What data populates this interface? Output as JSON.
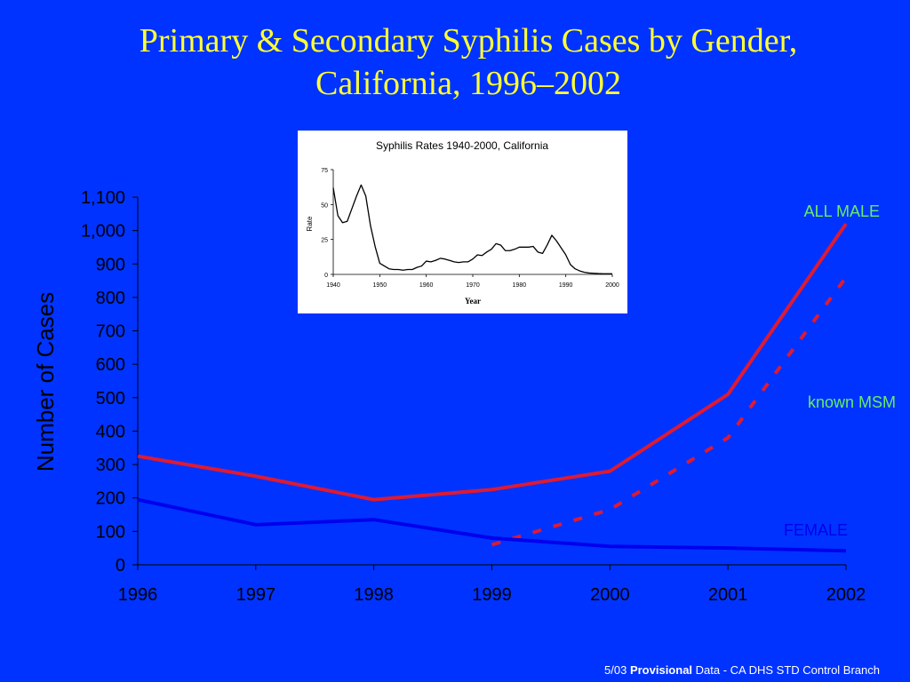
{
  "title": {
    "line1": "Primary & Secondary Syphilis Cases by Gender,",
    "line2": "California, 1996–2002"
  },
  "colors": {
    "background": "#0033ff",
    "title": "#ffff33",
    "male": "#dd1a33",
    "msm": "#dd1a33",
    "female": "#0000ee",
    "green_label": "#66ee66",
    "female_label": "#0000ee"
  },
  "chart_data": [
    {
      "type": "line",
      "ylabel": "Number of Cases",
      "xlabel": "",
      "x": [
        1996,
        1997,
        1998,
        1999,
        2000,
        2001,
        2002
      ],
      "x_tick_labels": [
        "1996",
        "1997",
        "1998",
        "1999",
        "2000",
        "2001",
        "2002"
      ],
      "y_tick_labels": [
        "0",
        "100",
        "200",
        "300",
        "400",
        "500",
        "600",
        "700",
        "800",
        "900",
        "1,000",
        "1,100"
      ],
      "y_ticks": [
        0,
        100,
        200,
        300,
        400,
        500,
        600,
        700,
        800,
        900,
        1000,
        1100
      ],
      "ylim": [
        0,
        1100
      ],
      "xlim": [
        1996,
        2002
      ],
      "grid": false,
      "series": [
        {
          "name": "ALL MALE",
          "style": "solid",
          "color": "#dd1a33",
          "x": [
            1996,
            1997,
            1998,
            1999,
            2000,
            2001,
            2002
          ],
          "values": [
            325,
            265,
            195,
            225,
            280,
            510,
            1020
          ]
        },
        {
          "name": "known MSM",
          "style": "dashed",
          "color": "#dd1a33",
          "x": [
            1999,
            2000,
            2001,
            2002
          ],
          "values": [
            60,
            165,
            380,
            860
          ]
        },
        {
          "name": "FEMALE",
          "style": "solid",
          "color": "#0000ee",
          "x": [
            1996,
            1997,
            1998,
            1999,
            2000,
            2001,
            2002
          ],
          "values": [
            195,
            120,
            135,
            80,
            55,
            50,
            42
          ]
        }
      ]
    },
    {
      "type": "line",
      "title": "Syphilis Rates 1940-2000, California",
      "xlabel": "Year",
      "ylabel": "Rate",
      "x_ticks": [
        1940,
        1950,
        1960,
        1970,
        1980,
        1990,
        2000
      ],
      "x_tick_labels": [
        "1940",
        "1950",
        "1960",
        "1970",
        "1980",
        "1990",
        "2000"
      ],
      "y_ticks": [
        0,
        25,
        50,
        75
      ],
      "y_tick_labels": [
        "0",
        "25",
        "50",
        "75"
      ],
      "xlim": [
        1940,
        2000
      ],
      "ylim": [
        0,
        75
      ],
      "series": [
        {
          "x": [
            1940,
            1941,
            1942,
            1943,
            1944,
            1945,
            1946,
            1947,
            1948,
            1949,
            1950,
            1951,
            1952,
            1953,
            1954,
            1955,
            1956,
            1957,
            1958,
            1959,
            1960,
            1961,
            1962,
            1963,
            1964,
            1965,
            1966,
            1967,
            1968,
            1969,
            1970,
            1971,
            1972,
            1973,
            1974,
            1975,
            1976,
            1977,
            1978,
            1979,
            1980,
            1981,
            1982,
            1983,
            1984,
            1985,
            1986,
            1987,
            1988,
            1989,
            1990,
            1991,
            1992,
            1993,
            1994,
            1995,
            1996,
            1997,
            1998,
            1999,
            2000
          ],
          "values": [
            62,
            42,
            37,
            38,
            47,
            56,
            64,
            56,
            35,
            20,
            8,
            6,
            4,
            3.5,
            3.5,
            3,
            3.5,
            3.5,
            5,
            6,
            9.5,
            9,
            10,
            11.5,
            11,
            10,
            9,
            8.5,
            9,
            9,
            11,
            14,
            13.5,
            16,
            18,
            22,
            21,
            17,
            17,
            18,
            19.5,
            19.5,
            19.5,
            20,
            16,
            15,
            21,
            28,
            24,
            19,
            14,
            7,
            4,
            2.5,
            1.5,
            1,
            0.8,
            0.6,
            0.5,
            0.5,
            0.5
          ]
        }
      ]
    }
  ],
  "labels": {
    "all_male": "ALL MALE",
    "known_msm": "known MSM",
    "female": "FEMALE"
  },
  "footer": {
    "prefix": "5/03 ",
    "bold": "Provisional",
    "suffix": " Data - CA DHS STD Control Branch"
  }
}
